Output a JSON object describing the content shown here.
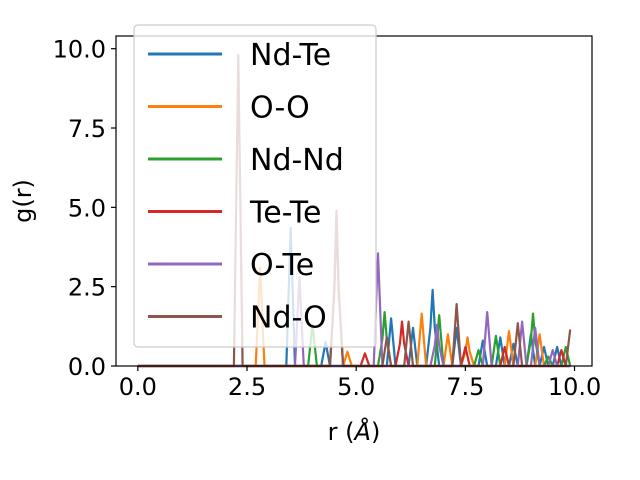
{
  "chart_data": {
    "type": "line",
    "xlabel": "r (",
    "xlabel_unit": "Å",
    "xlabel_close": ")",
    "ylabel": "g(r)",
    "xlim": [
      -0.5,
      10.4
    ],
    "ylim": [
      0,
      10.4
    ],
    "x_ticks": [
      0.0,
      2.5,
      5.0,
      7.5,
      10.0
    ],
    "x_tick_labels": [
      "0.0",
      "2.5",
      "5.0",
      "7.5",
      "10.0"
    ],
    "y_ticks": [
      0.0,
      2.5,
      5.0,
      7.5,
      10.0
    ],
    "y_tick_labels": [
      "0.0",
      "2.5",
      "5.0",
      "7.5",
      "10.0"
    ],
    "grid": false,
    "legend_position": "upper-left",
    "series": [
      {
        "name": "Nd-Te",
        "color": "#1f77b4",
        "peaks": [
          [
            3.5,
            4.35
          ],
          [
            4.3,
            0.75
          ],
          [
            5.8,
            1.5
          ],
          [
            6.3,
            1.2
          ],
          [
            6.75,
            2.4
          ],
          [
            7.3,
            1.2
          ],
          [
            7.9,
            0.8
          ],
          [
            8.3,
            0.9
          ],
          [
            8.6,
            0.7
          ],
          [
            9.0,
            1.0
          ],
          [
            9.3,
            0.6
          ],
          [
            9.6,
            0.6
          ]
        ]
      },
      {
        "name": "O-O",
        "color": "#ff7f0e",
        "peaks": [
          [
            2.8,
            3.1
          ],
          [
            4.8,
            0.45
          ],
          [
            6.5,
            1.65
          ],
          [
            7.1,
            1.0
          ],
          [
            7.55,
            0.9
          ],
          [
            8.5,
            1.1
          ],
          [
            9.2,
            1.0
          ]
        ]
      },
      {
        "name": "Nd-Nd",
        "color": "#2ca02c",
        "peaks": [
          [
            4.0,
            1.3
          ],
          [
            5.65,
            1.7
          ],
          [
            6.9,
            1.6
          ],
          [
            7.8,
            0.5
          ],
          [
            8.2,
            0.95
          ],
          [
            9.05,
            1.65
          ],
          [
            9.4,
            0.3
          ],
          [
            9.8,
            0.6
          ]
        ]
      },
      {
        "name": "Te-Te",
        "color": "#d62728",
        "peaks": [
          [
            4.55,
            4.7
          ],
          [
            5.2,
            0.4
          ],
          [
            6.05,
            1.4
          ],
          [
            7.5,
            0.6
          ],
          [
            8.4,
            0.6
          ],
          [
            9.7,
            0.5
          ]
        ]
      },
      {
        "name": "O-Te",
        "color": "#9467bd",
        "peaks": [
          [
            3.7,
            2.8
          ],
          [
            5.5,
            3.55
          ],
          [
            6.85,
            1.3
          ],
          [
            8.0,
            1.7
          ],
          [
            8.8,
            1.4
          ],
          [
            9.1,
            1.2
          ],
          [
            9.5,
            0.5
          ]
        ]
      },
      {
        "name": "Nd-O",
        "color": "#8c564b",
        "peaks": [
          [
            2.3,
            9.8
          ],
          [
            4.55,
            4.9
          ],
          [
            5.7,
            0.9
          ],
          [
            6.2,
            1.4
          ],
          [
            7.3,
            1.95
          ],
          [
            8.7,
            1.35
          ],
          [
            9.9,
            1.15
          ]
        ]
      }
    ]
  }
}
